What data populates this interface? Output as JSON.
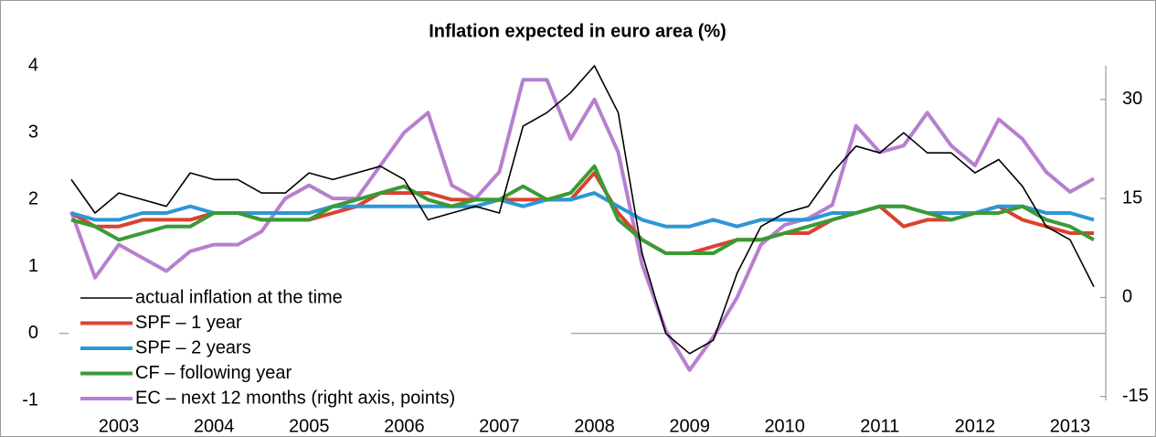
{
  "chart_data": {
    "type": "line",
    "title": "Inflation expected in euro area (%)",
    "categories": [
      null,
      null,
      "2003",
      null,
      null,
      null,
      "2004",
      null,
      null,
      null,
      "2005",
      null,
      null,
      null,
      "2006",
      null,
      null,
      null,
      "2007",
      null,
      null,
      null,
      "2008",
      null,
      null,
      null,
      "2009",
      null,
      null,
      null,
      "2010",
      null,
      null,
      null,
      "2011",
      null,
      null,
      null,
      "2012",
      null,
      null,
      null,
      "2013",
      null
    ],
    "ylim": [
      -1,
      4
    ],
    "yticks": [
      -1,
      0,
      1,
      2,
      3,
      4
    ],
    "y2lim": [
      -15.6,
      35.1
    ],
    "y2ticks": [
      -15,
      0,
      15,
      30
    ],
    "legend": "lower left",
    "series": [
      {
        "name": "actual inflation at the time",
        "color": "#000000",
        "values": [
          2.3,
          1.8,
          2.1,
          2.0,
          1.9,
          2.4,
          2.3,
          2.3,
          2.1,
          2.1,
          2.4,
          2.3,
          2.4,
          2.5,
          2.3,
          1.7,
          1.8,
          1.9,
          1.8,
          3.1,
          3.3,
          3.6,
          4.0,
          3.3,
          1.2,
          0.0,
          -0.3,
          -0.1,
          0.9,
          1.6,
          1.8,
          1.9,
          2.4,
          2.8,
          2.7,
          3.0,
          2.7,
          2.7,
          2.4,
          2.6,
          2.2,
          1.6,
          1.4,
          0.7
        ]
      },
      {
        "name": "SPF – 1 year",
        "color": "#d9432f",
        "values": [
          1.8,
          1.6,
          1.6,
          1.7,
          1.7,
          1.7,
          1.8,
          1.8,
          1.7,
          1.7,
          1.7,
          1.8,
          1.9,
          2.1,
          2.1,
          2.1,
          2.0,
          2.0,
          2.0,
          2.0,
          2.0,
          2.0,
          2.4,
          1.8,
          1.4,
          1.2,
          1.2,
          1.3,
          1.4,
          1.4,
          1.5,
          1.5,
          1.7,
          1.8,
          1.9,
          1.6,
          1.7,
          1.7,
          1.8,
          1.9,
          1.7,
          1.6,
          1.5,
          1.5
        ]
      },
      {
        "name": "SPF – 2 years",
        "color": "#2e96d6",
        "values": [
          1.8,
          1.7,
          1.7,
          1.8,
          1.8,
          1.9,
          1.8,
          1.8,
          1.8,
          1.8,
          1.8,
          1.9,
          1.9,
          1.9,
          1.9,
          1.9,
          1.9,
          1.9,
          2.0,
          1.9,
          2.0,
          2.0,
          2.1,
          1.9,
          1.7,
          1.6,
          1.6,
          1.7,
          1.6,
          1.7,
          1.7,
          1.7,
          1.8,
          1.8,
          1.9,
          1.9,
          1.8,
          1.8,
          1.8,
          1.9,
          1.9,
          1.8,
          1.8,
          1.7
        ]
      },
      {
        "name": "CF – following year",
        "color": "#3a9b35",
        "values": [
          1.7,
          1.6,
          1.4,
          1.5,
          1.6,
          1.6,
          1.8,
          1.8,
          1.7,
          1.7,
          1.7,
          1.9,
          2.0,
          2.1,
          2.2,
          2.0,
          1.9,
          2.0,
          2.0,
          2.2,
          2.0,
          2.1,
          2.5,
          1.7,
          1.4,
          1.2,
          1.2,
          1.2,
          1.4,
          1.4,
          1.5,
          1.6,
          1.7,
          1.8,
          1.9,
          1.9,
          1.8,
          1.7,
          1.8,
          1.8,
          1.9,
          1.7,
          1.6,
          1.4
        ]
      },
      {
        "name": "EC – next 12 months (right axis, points)",
        "color": "#b77fd0",
        "axis": "y2",
        "values": [
          13,
          3,
          8,
          6,
          4,
          7,
          8,
          8,
          10,
          15,
          17,
          15,
          15,
          20,
          25,
          28,
          17,
          15,
          19,
          33,
          33,
          24,
          30,
          22,
          5,
          -5,
          -11,
          -6,
          0,
          8,
          11,
          12,
          14,
          26,
          22,
          23,
          28,
          23,
          20,
          27,
          24,
          19,
          16,
          18
        ]
      }
    ]
  }
}
